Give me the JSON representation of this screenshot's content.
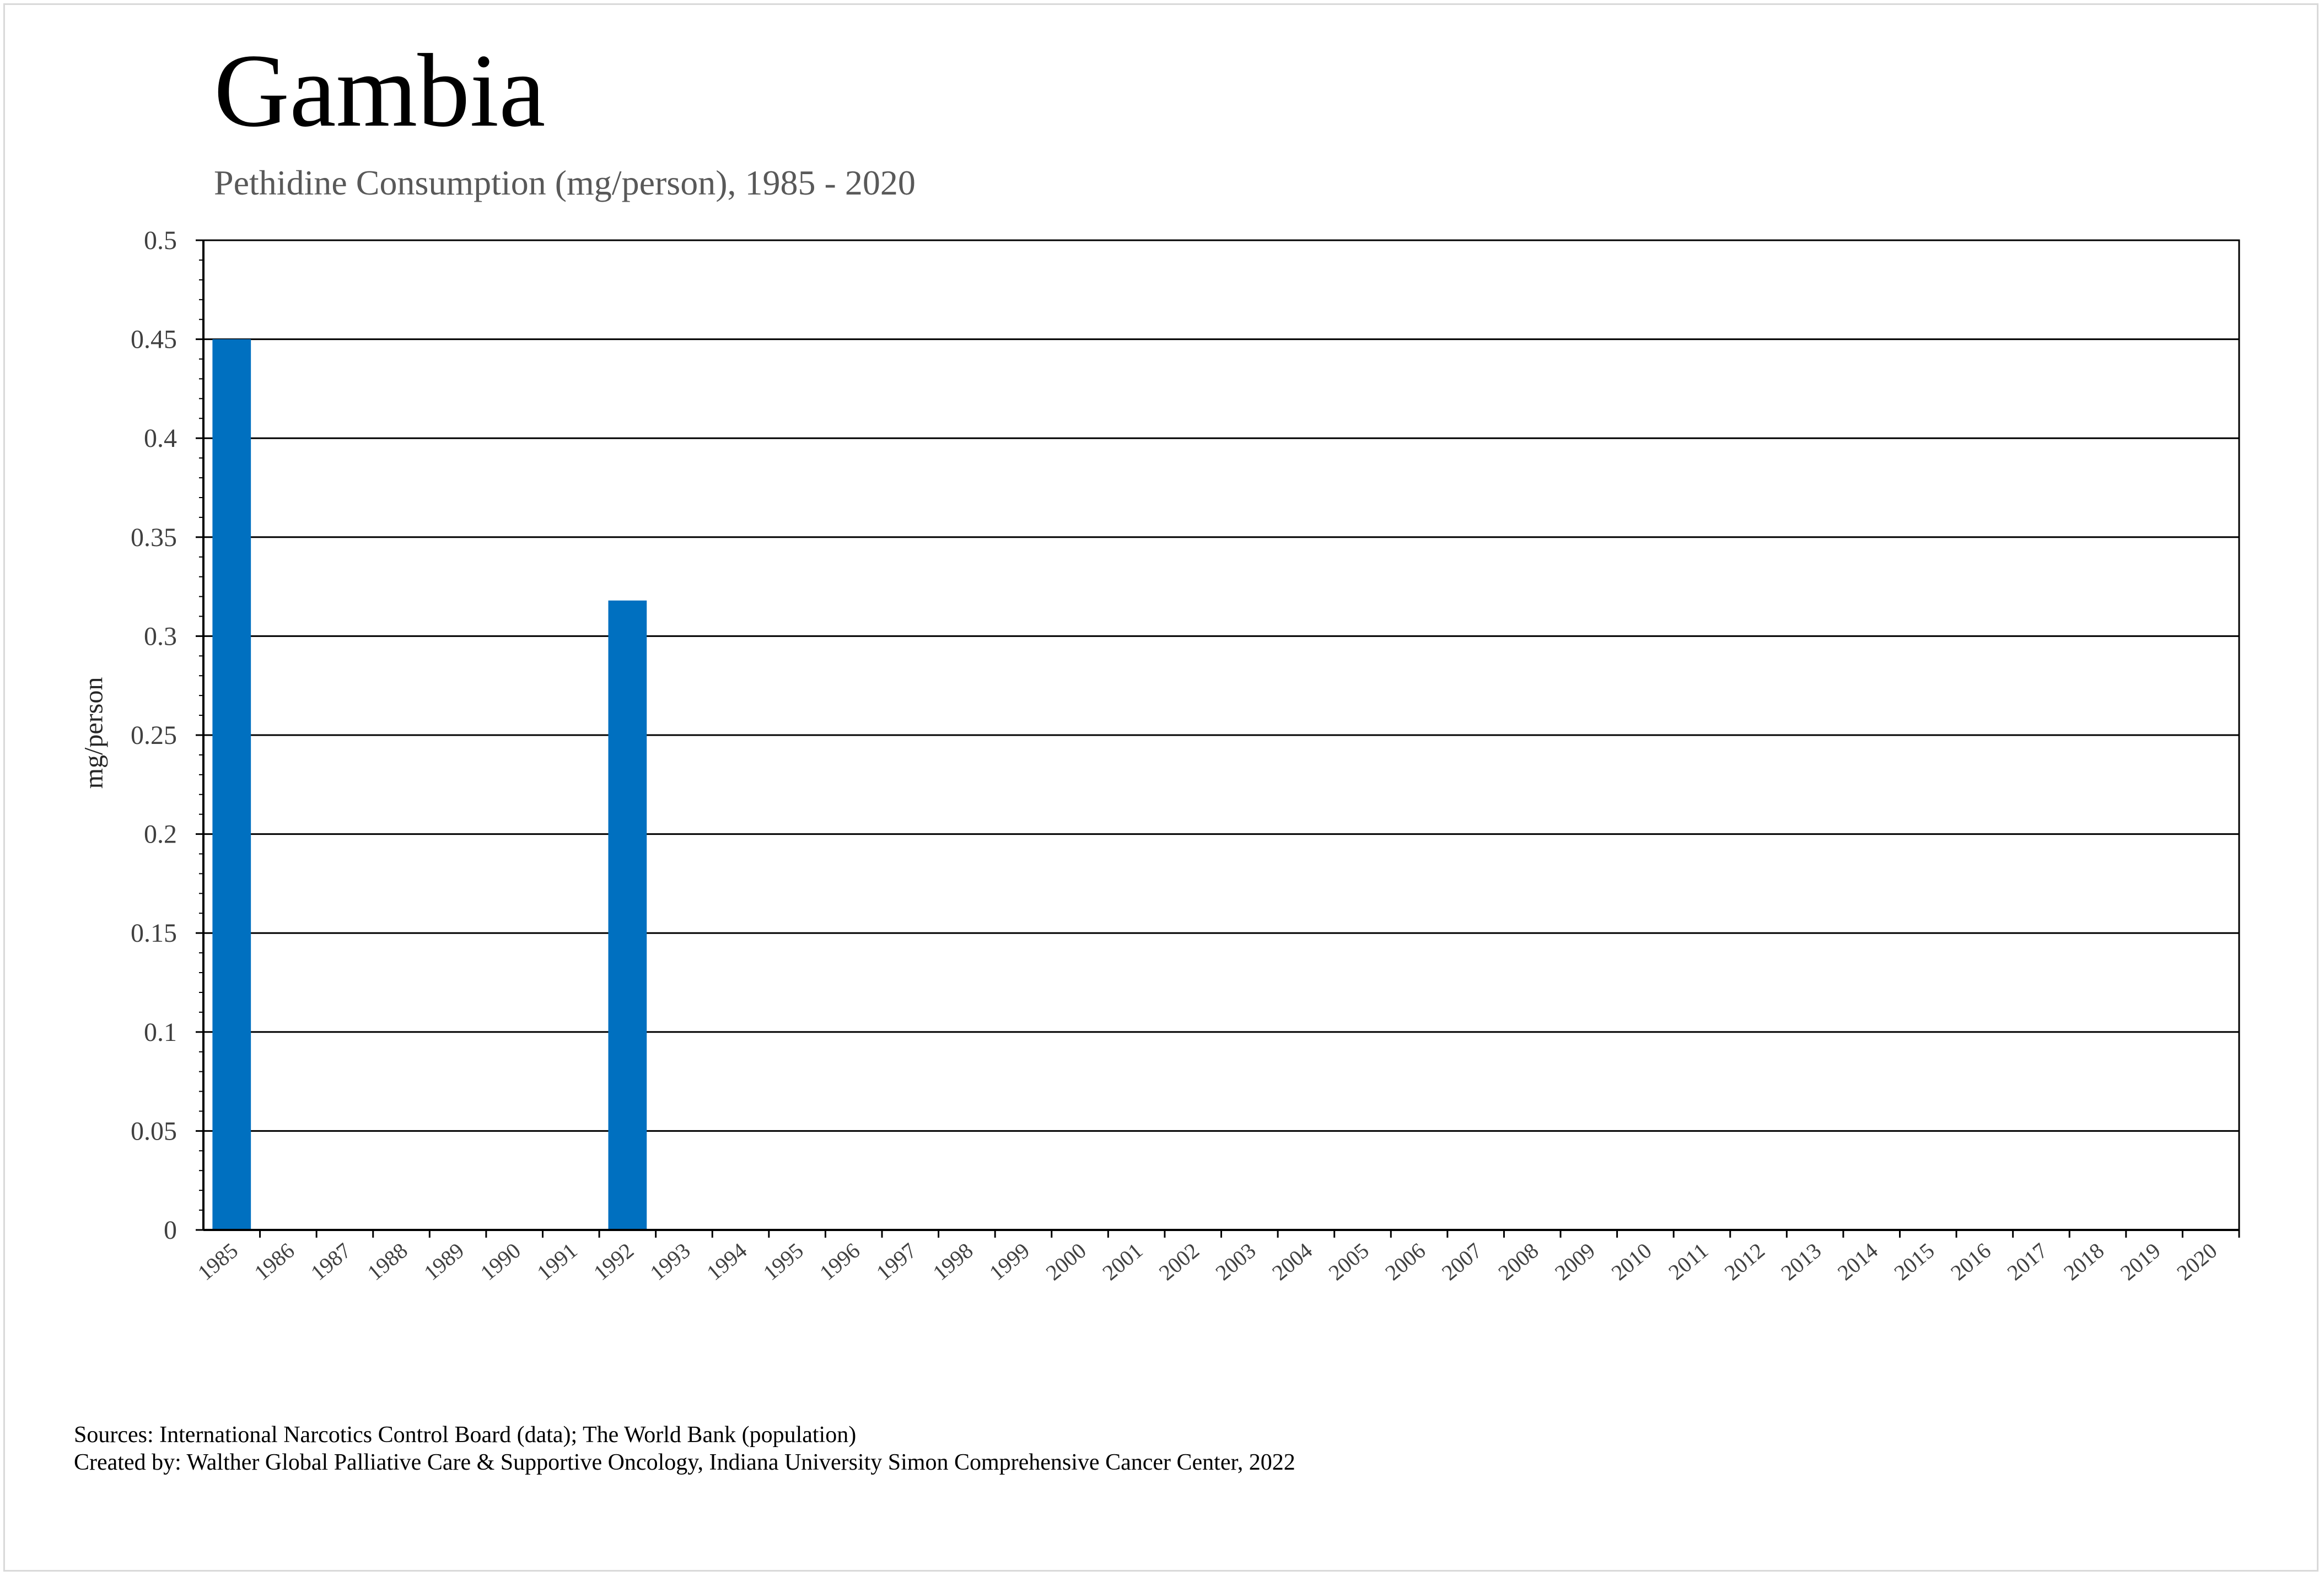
{
  "chart_data": {
    "type": "bar",
    "title": "Gambia",
    "subtitle": "Pethidine Consumption (mg/person), 1985 - 2020",
    "xlabel": "",
    "ylabel": "mg/person",
    "ylim": [
      0,
      0.5
    ],
    "yticks": [
      "0",
      "0.05",
      "0.1",
      "0.15",
      "0.2",
      "0.25",
      "0.3",
      "0.35",
      "0.4",
      "0.45",
      "0.5"
    ],
    "grid": true,
    "legend": "none",
    "bar_color": "#0070C0",
    "categories": [
      "1985",
      "1986",
      "1987",
      "1988",
      "1989",
      "1990",
      "1991",
      "1992",
      "1993",
      "1994",
      "1995",
      "1996",
      "1997",
      "1998",
      "1999",
      "2000",
      "2001",
      "2002",
      "2003",
      "2004",
      "2005",
      "2006",
      "2007",
      "2008",
      "2009",
      "2010",
      "2011",
      "2012",
      "2013",
      "2014",
      "2015",
      "2016",
      "2017",
      "2018",
      "2019",
      "2020"
    ],
    "values": [
      0.45,
      0,
      0,
      0,
      0,
      0,
      0,
      0.318,
      0,
      0,
      0,
      0,
      0,
      0,
      0,
      0,
      0,
      0,
      0,
      0,
      0,
      0,
      0,
      0,
      0,
      0,
      0,
      0,
      0,
      0,
      0,
      0,
      0,
      0,
      0,
      0
    ]
  },
  "footer": {
    "sources": "Sources: International Narcotics Control Board (data); The World Bank (population)",
    "created_by": "Created by: Walther Global Palliative Care & Supportive Oncology, Indiana University Simon Comprehensive Cancer Center, 2022"
  }
}
